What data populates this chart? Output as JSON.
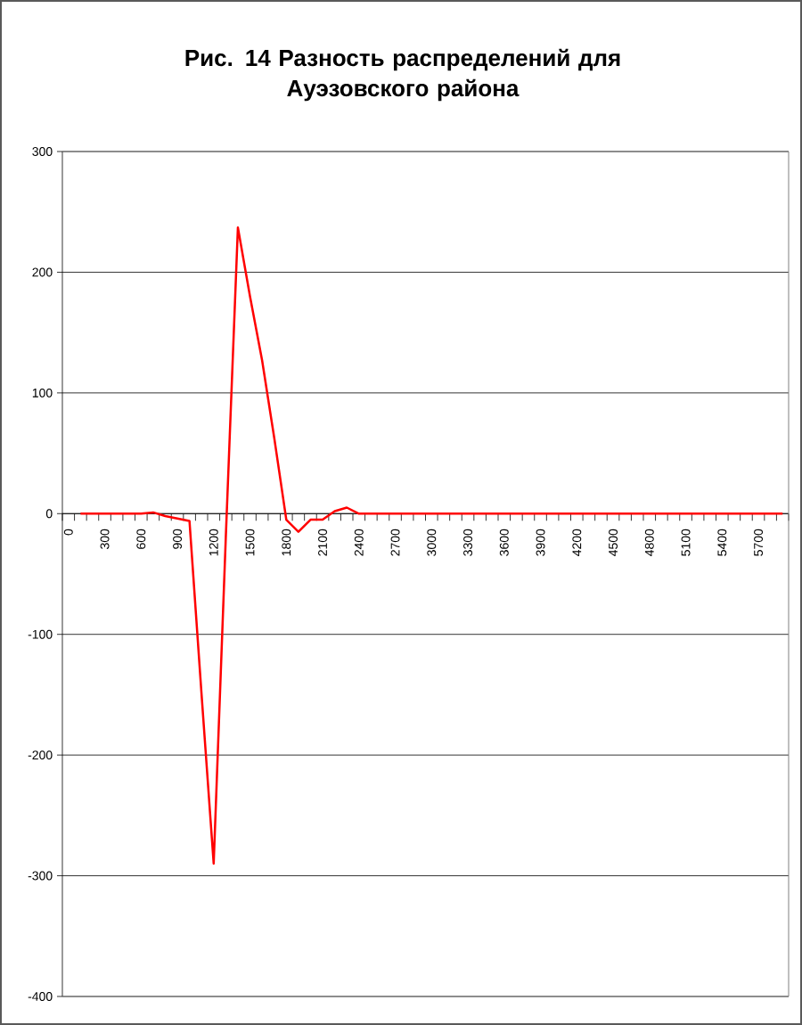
{
  "chart_data": {
    "type": "line",
    "title": "Рис. 14 Разность распределений для\nАуэзовского района",
    "categories": [
      "0",
      null,
      null,
      "300",
      null,
      null,
      "600",
      null,
      null,
      "900",
      null,
      null,
      "1200",
      null,
      null,
      "1500",
      null,
      null,
      "1800",
      null,
      null,
      "2100",
      null,
      null,
      "2400",
      null,
      null,
      "2700",
      null,
      null,
      "3000",
      null,
      null,
      "3300",
      null,
      null,
      "3600",
      null,
      null,
      "3900",
      null,
      null,
      "4200",
      null,
      null,
      "4500",
      null,
      null,
      "4800",
      null,
      null,
      "5100",
      null,
      null,
      "5400",
      null,
      null,
      "5700",
      null,
      null
    ],
    "series": [
      {
        "color": "#ff0000",
        "values": [
          null,
          0,
          0,
          0,
          0,
          0,
          0,
          1,
          -2,
          -4,
          -6,
          -150,
          -290,
          -20,
          237,
          180,
          127,
          63,
          -5,
          -15,
          -5,
          -5,
          2,
          5,
          0,
          0,
          0,
          0,
          0,
          0,
          0,
          0,
          0,
          0,
          0,
          0,
          0,
          0,
          0,
          0,
          0,
          0,
          0,
          0,
          0,
          0,
          0,
          0,
          0,
          0,
          0,
          0,
          0,
          0,
          0,
          0,
          0,
          0,
          0,
          0
        ]
      }
    ],
    "ylim": [
      -400,
      300
    ],
    "yticks": [
      -400,
      -300,
      -200,
      -100,
      0,
      100,
      200,
      300
    ],
    "grid": "y",
    "marker": "none",
    "line_style": "solid"
  }
}
